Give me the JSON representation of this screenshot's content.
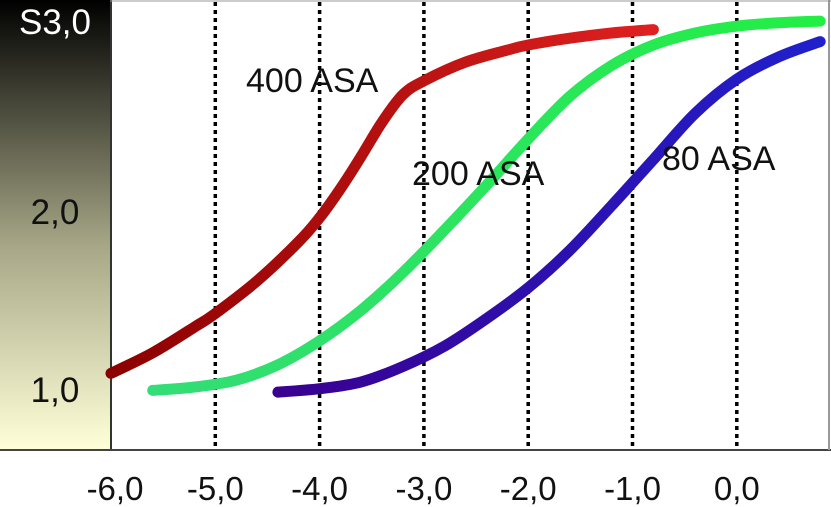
{
  "chart_data": {
    "type": "line",
    "title": "",
    "xlabel": "",
    "ylabel": "",
    "x_ticks": [
      "-6,0",
      "-5,0",
      "-4,0",
      "-3,0",
      "-2,0",
      "-1,0",
      "0,0"
    ],
    "x_tick_values": [
      -6,
      -5,
      -4,
      -3,
      -2,
      -1,
      0
    ],
    "y_ticks": [
      "S3,0",
      "2,0",
      "1,0"
    ],
    "y_tick_values": [
      3.0,
      2.0,
      1.0
    ],
    "xlim": [
      -6.0,
      0.8
    ],
    "ylim": [
      0.6,
      3.05
    ],
    "grid": "vertical dotted at x ticks",
    "legend": "labels placed on plot",
    "y_axis_gradient": {
      "top": "#000000",
      "mid": "#a8a888",
      "bottom": "#ffffd8"
    },
    "series": [
      {
        "name": "400 ASA",
        "color_start": "#8b0000",
        "color_end": "#e02020",
        "x": [
          -6.0,
          -5.6,
          -5.2,
          -5.0,
          -4.6,
          -4.2,
          -4.0,
          -3.8,
          -3.6,
          -3.4,
          -3.2,
          -3.0,
          -2.6,
          -2.2,
          -2.0,
          -1.6,
          -1.2,
          -0.8
        ],
        "y": [
          1.08,
          1.2,
          1.35,
          1.43,
          1.62,
          1.85,
          1.99,
          2.16,
          2.35,
          2.55,
          2.71,
          2.79,
          2.9,
          2.97,
          3.0,
          3.04,
          3.07,
          3.09
        ]
      },
      {
        "name": "200 ASA",
        "color_start": "#33dd77",
        "color_end": "#22ee44",
        "x": [
          -5.6,
          -5.2,
          -4.8,
          -4.4,
          -4.0,
          -3.6,
          -3.2,
          -2.8,
          -2.4,
          -2.0,
          -1.6,
          -1.2,
          -0.8,
          -0.4,
          0.0,
          0.4,
          0.8
        ],
        "y": [
          0.98,
          1.0,
          1.04,
          1.13,
          1.27,
          1.45,
          1.67,
          1.92,
          2.18,
          2.45,
          2.7,
          2.88,
          3.0,
          3.07,
          3.11,
          3.13,
          3.14
        ]
      },
      {
        "name": "80 ASA",
        "color_start": "#3a0090",
        "color_end": "#2020cc",
        "x": [
          -4.4,
          -4.0,
          -3.6,
          -3.2,
          -2.8,
          -2.4,
          -2.0,
          -1.6,
          -1.2,
          -0.8,
          -0.4,
          0.0,
          0.4,
          0.8
        ],
        "y": [
          0.97,
          0.99,
          1.03,
          1.12,
          1.24,
          1.4,
          1.58,
          1.8,
          2.06,
          2.33,
          2.6,
          2.8,
          2.93,
          3.02
        ]
      }
    ],
    "labels": {
      "asa_400": "400 ASA",
      "asa_200": "200 ASA",
      "asa_80": "80 ASA"
    }
  }
}
